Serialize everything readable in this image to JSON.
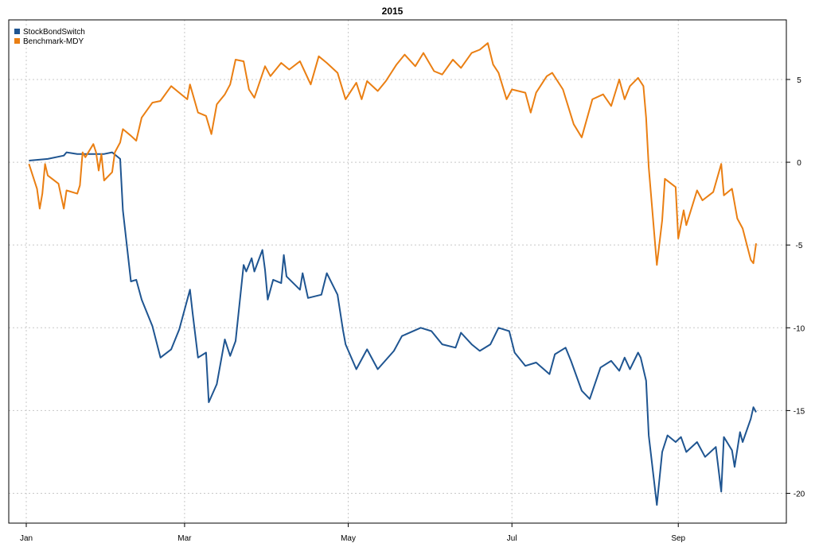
{
  "chart_data": {
    "type": "line",
    "title": "2015",
    "xlabel": "",
    "ylabel": "",
    "x_axis": {
      "type": "date",
      "range": [
        "2015-01-01",
        "2015-09-30"
      ],
      "ticks": [
        {
          "date": "2015-01-01",
          "label": "Jan"
        },
        {
          "date": "2015-03-01",
          "label": "Mar"
        },
        {
          "date": "2015-05-01",
          "label": "May"
        },
        {
          "date": "2015-07-01",
          "label": "Jul"
        },
        {
          "date": "2015-09-01",
          "label": "Sep"
        }
      ]
    },
    "y_axis": {
      "position": "right",
      "range": [
        -21.8,
        8.6
      ],
      "ticks": [
        5,
        0,
        -5,
        -10,
        -15,
        -20
      ],
      "tick_labels": [
        "5",
        "0",
        "-5",
        "-10",
        "-15",
        "-20"
      ]
    },
    "grid": true,
    "legend": {
      "position": "top-left"
    },
    "series": [
      {
        "name": "StockBondSwitch",
        "color": "#1f5591",
        "points": [
          [
            "2015-01-02",
            0.1
          ],
          [
            "2015-01-09",
            0.2
          ],
          [
            "2015-01-15",
            0.4
          ],
          [
            "2015-01-16",
            0.6
          ],
          [
            "2015-01-20",
            0.5
          ],
          [
            "2015-01-30",
            0.5
          ],
          [
            "2015-02-02",
            0.6
          ],
          [
            "2015-02-05",
            0.2
          ],
          [
            "2015-02-06",
            -2.9
          ],
          [
            "2015-02-09",
            -7.2
          ],
          [
            "2015-02-11",
            -7.1
          ],
          [
            "2015-02-13",
            -8.3
          ],
          [
            "2015-02-17",
            -9.9
          ],
          [
            "2015-02-20",
            -11.8
          ],
          [
            "2015-02-24",
            -11.3
          ],
          [
            "2015-02-27",
            -10.1
          ],
          [
            "2015-03-03",
            -7.7
          ],
          [
            "2015-03-04",
            -9.1
          ],
          [
            "2015-03-06",
            -11.8
          ],
          [
            "2015-03-09",
            -11.5
          ],
          [
            "2015-03-10",
            -14.5
          ],
          [
            "2015-03-13",
            -13.4
          ],
          [
            "2015-03-16",
            -10.7
          ],
          [
            "2015-03-18",
            -11.7
          ],
          [
            "2015-03-20",
            -10.8
          ],
          [
            "2015-03-23",
            -6.2
          ],
          [
            "2015-03-24",
            -6.6
          ],
          [
            "2015-03-26",
            -5.8
          ],
          [
            "2015-03-27",
            -6.6
          ],
          [
            "2015-03-30",
            -5.3
          ],
          [
            "2015-03-31",
            -6.5
          ],
          [
            "2015-04-01",
            -8.3
          ],
          [
            "2015-04-03",
            -7.1
          ],
          [
            "2015-04-06",
            -7.3
          ],
          [
            "2015-04-07",
            -5.6
          ],
          [
            "2015-04-08",
            -6.9
          ],
          [
            "2015-04-13",
            -7.7
          ],
          [
            "2015-04-14",
            -6.7
          ],
          [
            "2015-04-16",
            -8.2
          ],
          [
            "2015-04-21",
            -8.0
          ],
          [
            "2015-04-23",
            -6.7
          ],
          [
            "2015-04-27",
            -8.0
          ],
          [
            "2015-04-29",
            -10.1
          ],
          [
            "2015-04-30",
            -11.0
          ],
          [
            "2015-05-04",
            -12.5
          ],
          [
            "2015-05-08",
            -11.3
          ],
          [
            "2015-05-12",
            -12.5
          ],
          [
            "2015-05-18",
            -11.4
          ],
          [
            "2015-05-21",
            -10.5
          ],
          [
            "2015-05-28",
            -10.0
          ],
          [
            "2015-06-01",
            -10.2
          ],
          [
            "2015-06-05",
            -11.0
          ],
          [
            "2015-06-10",
            -11.2
          ],
          [
            "2015-06-12",
            -10.3
          ],
          [
            "2015-06-16",
            -11.0
          ],
          [
            "2015-06-19",
            -11.4
          ],
          [
            "2015-06-23",
            -11.0
          ],
          [
            "2015-06-26",
            -10.0
          ],
          [
            "2015-06-30",
            -10.2
          ],
          [
            "2015-07-02",
            -11.5
          ],
          [
            "2015-07-06",
            -12.3
          ],
          [
            "2015-07-10",
            -12.1
          ],
          [
            "2015-07-15",
            -12.8
          ],
          [
            "2015-07-17",
            -11.6
          ],
          [
            "2015-07-21",
            -11.2
          ],
          [
            "2015-07-23",
            -12.0
          ],
          [
            "2015-07-27",
            -13.8
          ],
          [
            "2015-07-30",
            -14.3
          ],
          [
            "2015-08-03",
            -12.4
          ],
          [
            "2015-08-07",
            -12.0
          ],
          [
            "2015-08-10",
            -12.6
          ],
          [
            "2015-08-12",
            -11.8
          ],
          [
            "2015-08-14",
            -12.5
          ],
          [
            "2015-08-17",
            -11.5
          ],
          [
            "2015-08-18",
            -11.8
          ],
          [
            "2015-08-20",
            -13.2
          ],
          [
            "2015-08-21",
            -16.5
          ],
          [
            "2015-08-24",
            -20.7
          ],
          [
            "2015-08-26",
            -17.5
          ],
          [
            "2015-08-28",
            -16.5
          ],
          [
            "2015-08-31",
            -16.9
          ],
          [
            "2015-09-02",
            -16.6
          ],
          [
            "2015-09-04",
            -17.5
          ],
          [
            "2015-09-08",
            -16.9
          ],
          [
            "2015-09-11",
            -17.8
          ],
          [
            "2015-09-15",
            -17.2
          ],
          [
            "2015-09-17",
            -19.9
          ],
          [
            "2015-09-18",
            -16.6
          ],
          [
            "2015-09-21",
            -17.4
          ],
          [
            "2015-09-22",
            -18.4
          ],
          [
            "2015-09-24",
            -16.3
          ],
          [
            "2015-09-25",
            -16.9
          ],
          [
            "2015-09-28",
            -15.5
          ],
          [
            "2015-09-29",
            -14.8
          ],
          [
            "2015-09-30",
            -15.1
          ]
        ]
      },
      {
        "name": "Benchmark-MDY",
        "color": "#ea7f13",
        "points": [
          [
            "2015-01-02",
            -0.1
          ],
          [
            "2015-01-05",
            -1.6
          ],
          [
            "2015-01-06",
            -2.8
          ],
          [
            "2015-01-07",
            -1.9
          ],
          [
            "2015-01-08",
            -0.1
          ],
          [
            "2015-01-09",
            -0.8
          ],
          [
            "2015-01-13",
            -1.3
          ],
          [
            "2015-01-15",
            -2.8
          ],
          [
            "2015-01-16",
            -1.7
          ],
          [
            "2015-01-20",
            -1.9
          ],
          [
            "2015-01-21",
            -1.4
          ],
          [
            "2015-01-22",
            0.6
          ],
          [
            "2015-01-23",
            0.3
          ],
          [
            "2015-01-26",
            1.1
          ],
          [
            "2015-01-27",
            0.6
          ],
          [
            "2015-01-28",
            -0.5
          ],
          [
            "2015-01-29",
            0.5
          ],
          [
            "2015-01-30",
            -1.1
          ],
          [
            "2015-02-02",
            -0.6
          ],
          [
            "2015-02-03",
            0.6
          ],
          [
            "2015-02-05",
            1.2
          ],
          [
            "2015-02-06",
            2.0
          ],
          [
            "2015-02-09",
            1.6
          ],
          [
            "2015-02-11",
            1.3
          ],
          [
            "2015-02-13",
            2.7
          ],
          [
            "2015-02-17",
            3.6
          ],
          [
            "2015-02-20",
            3.7
          ],
          [
            "2015-02-24",
            4.6
          ],
          [
            "2015-02-27",
            4.2
          ],
          [
            "2015-03-02",
            3.8
          ],
          [
            "2015-03-03",
            4.7
          ],
          [
            "2015-03-06",
            3.0
          ],
          [
            "2015-03-09",
            2.8
          ],
          [
            "2015-03-11",
            1.7
          ],
          [
            "2015-03-13",
            3.5
          ],
          [
            "2015-03-16",
            4.1
          ],
          [
            "2015-03-18",
            4.7
          ],
          [
            "2015-03-20",
            6.2
          ],
          [
            "2015-03-23",
            6.1
          ],
          [
            "2015-03-25",
            4.4
          ],
          [
            "2015-03-27",
            3.9
          ],
          [
            "2015-03-31",
            5.8
          ],
          [
            "2015-04-02",
            5.2
          ],
          [
            "2015-04-06",
            6.0
          ],
          [
            "2015-04-09",
            5.6
          ],
          [
            "2015-04-13",
            6.1
          ],
          [
            "2015-04-17",
            4.7
          ],
          [
            "2015-04-20",
            6.4
          ],
          [
            "2015-04-23",
            6.0
          ],
          [
            "2015-04-27",
            5.4
          ],
          [
            "2015-04-30",
            3.8
          ],
          [
            "2015-05-04",
            4.8
          ],
          [
            "2015-05-06",
            3.8
          ],
          [
            "2015-05-08",
            4.9
          ],
          [
            "2015-05-12",
            4.3
          ],
          [
            "2015-05-15",
            4.9
          ],
          [
            "2015-05-19",
            5.9
          ],
          [
            "2015-05-22",
            6.5
          ],
          [
            "2015-05-26",
            5.8
          ],
          [
            "2015-05-29",
            6.6
          ],
          [
            "2015-06-02",
            5.5
          ],
          [
            "2015-06-05",
            5.3
          ],
          [
            "2015-06-09",
            6.2
          ],
          [
            "2015-06-12",
            5.7
          ],
          [
            "2015-06-16",
            6.6
          ],
          [
            "2015-06-19",
            6.8
          ],
          [
            "2015-06-22",
            7.2
          ],
          [
            "2015-06-24",
            5.9
          ],
          [
            "2015-06-26",
            5.4
          ],
          [
            "2015-06-29",
            3.8
          ],
          [
            "2015-07-01",
            4.4
          ],
          [
            "2015-07-06",
            4.2
          ],
          [
            "2015-07-08",
            3.0
          ],
          [
            "2015-07-10",
            4.2
          ],
          [
            "2015-07-14",
            5.2
          ],
          [
            "2015-07-16",
            5.4
          ],
          [
            "2015-07-20",
            4.4
          ],
          [
            "2015-07-24",
            2.3
          ],
          [
            "2015-07-27",
            1.5
          ],
          [
            "2015-07-31",
            3.8
          ],
          [
            "2015-08-04",
            4.1
          ],
          [
            "2015-08-07",
            3.4
          ],
          [
            "2015-08-10",
            5.0
          ],
          [
            "2015-08-12",
            3.8
          ],
          [
            "2015-08-14",
            4.6
          ],
          [
            "2015-08-17",
            5.1
          ],
          [
            "2015-08-19",
            4.6
          ],
          [
            "2015-08-20",
            2.7
          ],
          [
            "2015-08-21",
            -0.3
          ],
          [
            "2015-08-24",
            -6.2
          ],
          [
            "2015-08-26",
            -3.5
          ],
          [
            "2015-08-27",
            -1.0
          ],
          [
            "2015-08-31",
            -1.5
          ],
          [
            "2015-09-01",
            -4.6
          ],
          [
            "2015-09-03",
            -2.9
          ],
          [
            "2015-09-04",
            -3.8
          ],
          [
            "2015-09-08",
            -1.7
          ],
          [
            "2015-09-10",
            -2.3
          ],
          [
            "2015-09-14",
            -1.8
          ],
          [
            "2015-09-17",
            -0.1
          ],
          [
            "2015-09-18",
            -2.0
          ],
          [
            "2015-09-21",
            -1.6
          ],
          [
            "2015-09-23",
            -3.4
          ],
          [
            "2015-09-25",
            -4.0
          ],
          [
            "2015-09-28",
            -5.9
          ],
          [
            "2015-09-29",
            -6.1
          ],
          [
            "2015-09-30",
            -4.9
          ]
        ]
      }
    ]
  }
}
